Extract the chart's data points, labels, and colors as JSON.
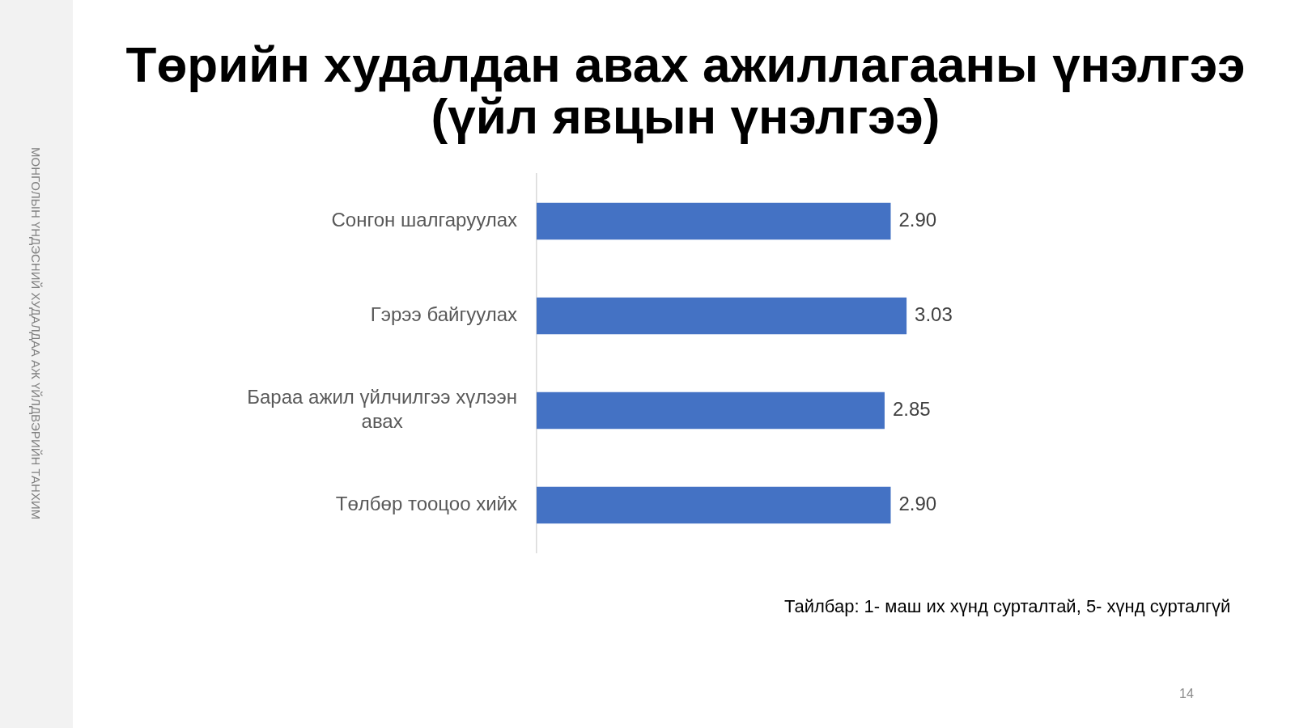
{
  "chart_data": {
    "type": "bar",
    "orientation": "horizontal",
    "title": "Төрийн худалдан авах ажиллагааны үнэлгээ\n(үйл явцын үнэлгээ)",
    "categories": [
      "Сонгон шалгаруулах",
      "Гэрээ байгуулах",
      "Бараа ажил үйлчилгээ хүлээн авах",
      "Төлбөр тооцоо хийх"
    ],
    "values": [
      2.9,
      3.03,
      2.85,
      2.9
    ],
    "value_labels": [
      "2.90",
      "3.03",
      "2.85",
      "2.90"
    ],
    "color": "#4472c4",
    "annotations": [
      "Тайлбар: 1- маш их хүнд сурталтай, 5- хүнд сурталгүй",
      "МОНГОЛЫН ҮНДЭСНИЙ ХУДАЛДАА АЖ ҮЙЛДВЭРИЙН ТАНХИМ",
      "14"
    ]
  }
}
